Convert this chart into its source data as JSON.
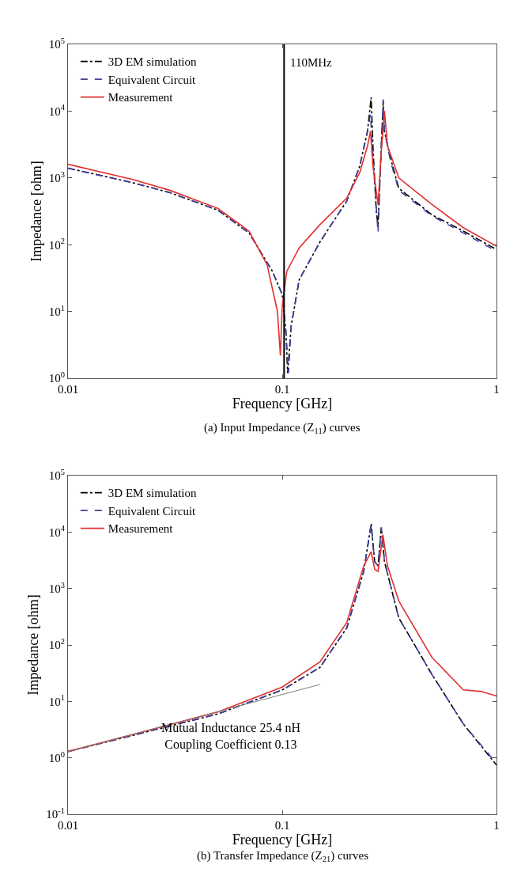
{
  "chart_data": [
    {
      "type": "line",
      "xlabel": "Frequency [GHz]",
      "ylabel": "Impedance [ohm]",
      "log": "xy",
      "legend": "top left",
      "xlim": [
        0.01,
        1
      ],
      "ylim": [
        1,
        100000
      ],
      "xticks": [
        0.01,
        0.1,
        1
      ],
      "yticks": [
        {
          "value": 1,
          "label": "10$^{0}$"
        },
        {
          "value": 10,
          "label": "10$^{1}$"
        },
        {
          "value": 100,
          "label": "10$^{2}$"
        },
        {
          "value": 1000,
          "label": "10$^{3}$"
        },
        {
          "value": 10000,
          "label": "10$^{4}$"
        },
        {
          "value": 100000,
          "label": "10$^{5}$"
        }
      ],
      "ref_lines": [
        {
          "axis": "x",
          "value": 0.102,
          "label": "110MHz",
          "color": "#000000"
        }
      ],
      "annotations": [
        "(a) Input Impedance (Z$_{11}$) curves"
      ],
      "series": [
        {
          "name": "3D EM simulation",
          "color": "#000000",
          "line_style": "dashdot",
          "x": [
            0.01,
            0.02,
            0.03,
            0.05,
            0.07,
            0.09,
            0.1,
            0.104,
            0.106,
            0.11,
            0.12,
            0.15,
            0.2,
            0.23,
            0.25,
            0.26,
            0.265,
            0.275,
            0.28,
            0.29,
            0.296,
            0.3,
            0.32,
            0.35,
            0.5,
            0.7,
            1
          ],
          "values": [
            1400,
            850,
            600,
            330,
            150,
            40,
            18,
            5,
            1.2,
            6,
            30,
            110,
            450,
            1500,
            5000,
            16000,
            3000,
            300,
            200,
            3000,
            14000,
            5000,
            2000,
            700,
            280,
            160,
            85
          ]
        },
        {
          "name": "Equivalent Circuit",
          "color": "#4040a0",
          "line_style": "dashed",
          "x": [
            0.01,
            0.02,
            0.03,
            0.05,
            0.07,
            0.09,
            0.1,
            0.104,
            0.107,
            0.11,
            0.12,
            0.15,
            0.2,
            0.23,
            0.25,
            0.258,
            0.265,
            0.28,
            0.29,
            0.296,
            0.3,
            0.32,
            0.35,
            0.5,
            0.7,
            1
          ],
          "values": [
            1400,
            850,
            600,
            330,
            150,
            40,
            18,
            5,
            1.2,
            6,
            30,
            110,
            450,
            1500,
            5000,
            9000,
            2000,
            150,
            3000,
            15000,
            5000,
            1800,
            650,
            270,
            150,
            80
          ]
        },
        {
          "name": "Measurement",
          "color": "#e03030",
          "line_style": "solid",
          "x": [
            0.01,
            0.02,
            0.03,
            0.05,
            0.07,
            0.085,
            0.095,
            0.098,
            0.1,
            0.105,
            0.12,
            0.15,
            0.2,
            0.23,
            0.25,
            0.258,
            0.265,
            0.28,
            0.29,
            0.3,
            0.31,
            0.35,
            0.5,
            0.7,
            1
          ],
          "values": [
            1600,
            950,
            650,
            350,
            160,
            50,
            10,
            2.2,
            12,
            40,
            90,
            200,
            500,
            1200,
            3000,
            5000,
            1500,
            400,
            2500,
            10000,
            3000,
            1000,
            400,
            180,
            95
          ]
        }
      ]
    },
    {
      "type": "line",
      "xlabel": "Frequency [GHz]",
      "ylabel": "Impedance [ohm]",
      "log": "xy",
      "legend": "top left",
      "xlim": [
        0.01,
        1
      ],
      "ylim": [
        0.1,
        100000
      ],
      "xticks": [
        0.01,
        0.1,
        1
      ],
      "yticks": [
        {
          "value": 0.1,
          "label": "10$^{-1}$"
        },
        {
          "value": 1,
          "label": "10$^{0}$"
        },
        {
          "value": 10,
          "label": "10$^{1}$"
        },
        {
          "value": 100,
          "label": "10$^{2}$"
        },
        {
          "value": 1000,
          "label": "10$^{3}$"
        },
        {
          "value": 10000,
          "label": "10$^{4}$"
        },
        {
          "value": 100000,
          "label": "10$^{5}$"
        }
      ],
      "annotations": [
        "Mutual Inductance 25.4 nH\nCoupling Coefficient 0.13",
        "(b) Transfer Impedance (Z$_{21}$) curves"
      ],
      "series": [
        {
          "name": "3D EM simulation",
          "color": "#000000",
          "line_style": "dashdot",
          "x": [
            0.01,
            0.02,
            0.05,
            0.1,
            0.15,
            0.2,
            0.24,
            0.26,
            0.27,
            0.28,
            0.29,
            0.3,
            0.35,
            0.5,
            0.7,
            1
          ],
          "values": [
            1.3,
            2.5,
            6,
            16,
            40,
            200,
            2000,
            14000,
            3000,
            2500,
            12000,
            3000,
            300,
            30,
            4,
            0.75
          ]
        },
        {
          "name": "Equivalent Circuit",
          "color": "#4040a0",
          "line_style": "dashed",
          "x": [
            0.01,
            0.02,
            0.05,
            0.1,
            0.15,
            0.2,
            0.24,
            0.26,
            0.27,
            0.28,
            0.29,
            0.3,
            0.35,
            0.5,
            0.7,
            1
          ],
          "values": [
            1.3,
            2.5,
            6,
            16,
            40,
            200,
            2000,
            13000,
            3000,
            2500,
            12000,
            3000,
            300,
            30,
            4,
            0.8
          ]
        },
        {
          "name": "Measurement",
          "color": "#e03030",
          "line_style": "solid",
          "x": [
            0.01,
            0.02,
            0.05,
            0.1,
            0.15,
            0.2,
            0.24,
            0.26,
            0.27,
            0.28,
            0.295,
            0.31,
            0.35,
            0.5,
            0.7,
            0.85,
            1
          ],
          "values": [
            1.3,
            2.6,
            6.5,
            18,
            50,
            250,
            2500,
            4500,
            2200,
            2000,
            9000,
            2500,
            600,
            60,
            16,
            15,
            12.5
          ]
        },
        {
          "type": "line",
          "color": "#808080",
          "line_style": "solid",
          "x": [
            0.01,
            0.15
          ],
          "values": [
            1.3,
            20
          ]
        }
      ]
    }
  ]
}
